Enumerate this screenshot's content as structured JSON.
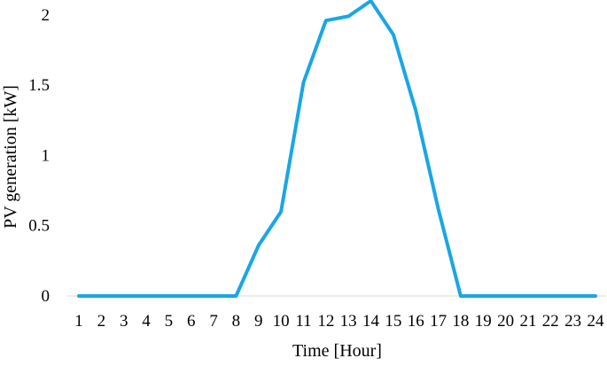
{
  "chart_data": {
    "type": "line",
    "xlabel": "Time [Hour]",
    "ylabel": "PV generation [kW]",
    "categories": [
      "1",
      "2",
      "3",
      "4",
      "5",
      "6",
      "7",
      "8",
      "9",
      "10",
      "11",
      "12",
      "13",
      "14",
      "15",
      "16",
      "17",
      "18",
      "19",
      "20",
      "21",
      "22",
      "23",
      "24"
    ],
    "yticks": [
      "0",
      "0.5",
      "1",
      "1.5",
      "2"
    ],
    "ylim": [
      0,
      2.1
    ],
    "grid": false,
    "legend": "none",
    "series": [
      {
        "color": "#1aa6e4",
        "values": [
          0,
          0,
          0,
          0,
          0,
          0,
          0,
          0,
          0.36,
          0.6,
          1.52,
          1.96,
          1.99,
          2.1,
          1.86,
          1.32,
          0.62,
          0,
          0,
          0,
          0,
          0,
          0,
          0
        ]
      }
    ]
  }
}
